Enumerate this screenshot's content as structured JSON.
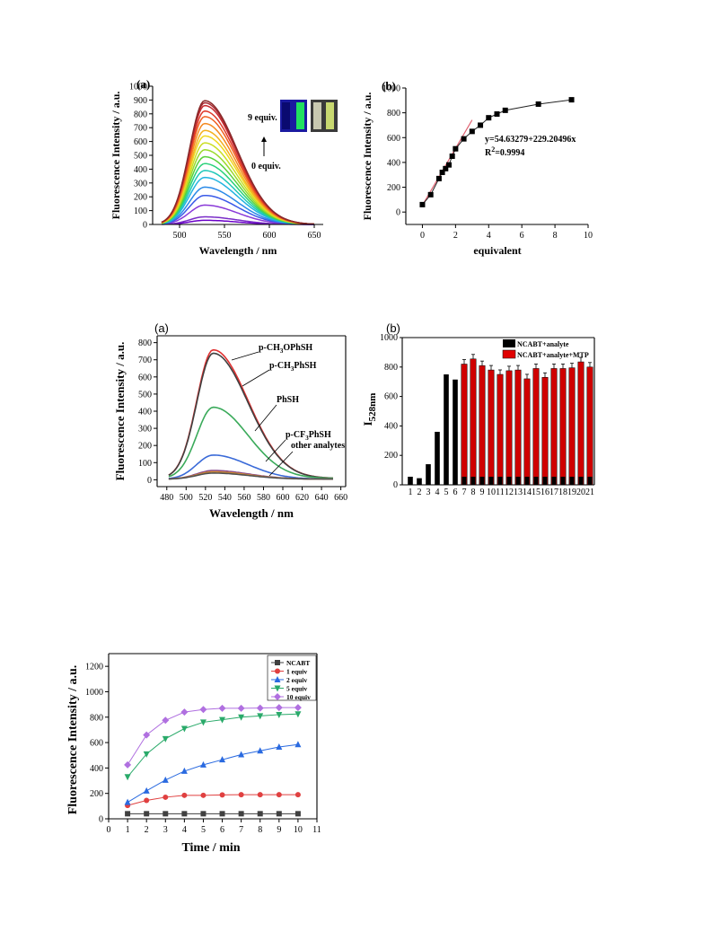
{
  "chart_data": [
    {
      "id": "fig1a",
      "type": "line",
      "panel_label": "(a)",
      "xlabel": "Wavelength / nm",
      "ylabel": "Fluorescence Intensity / a.u.",
      "xlim": [
        470,
        660
      ],
      "ylim": [
        0,
        1000
      ],
      "xticks": [
        500,
        550,
        600,
        650
      ],
      "yticks": [
        0,
        100,
        200,
        300,
        400,
        500,
        600,
        700,
        800,
        900,
        1000
      ],
      "annotations": [
        "9 equiv.",
        "0 equiv."
      ],
      "peak_x": 528,
      "curve_x_range": [
        480,
        650
      ],
      "peaks": [
        30,
        55,
        140,
        210,
        270,
        340,
        390,
        440,
        490,
        540,
        590,
        640,
        680,
        730,
        780,
        820,
        860,
        880,
        895
      ],
      "colors": [
        "#6a00c8",
        "#7a2cc8",
        "#8a3ad8",
        "#3a5ae8",
        "#2a8ae8",
        "#22b4e0",
        "#1ec8b8",
        "#2ad27a",
        "#5ad23a",
        "#9ada2a",
        "#cade22",
        "#f0d820",
        "#f4b020",
        "#f48a20",
        "#f06020",
        "#e03a2a",
        "#c82a30",
        "#a82830",
        "#8a2a2a"
      ]
    },
    {
      "id": "fig1b",
      "type": "scatter",
      "panel_label": "(b)",
      "xlabel": "equivalent",
      "ylabel": "Fluorescence Intensity / a.u.",
      "xlim": [
        -1,
        10
      ],
      "ylim": [
        -100,
        1000
      ],
      "xticks": [
        0,
        2,
        4,
        6,
        8,
        10
      ],
      "yticks": [
        0,
        200,
        400,
        600,
        800,
        1000
      ],
      "x": [
        0,
        0.5,
        1,
        1.2,
        1.4,
        1.6,
        1.8,
        2,
        2.5,
        3,
        3.5,
        4,
        4.5,
        5,
        7,
        9
      ],
      "y": [
        60,
        140,
        270,
        320,
        350,
        380,
        450,
        510,
        590,
        650,
        700,
        760,
        790,
        820,
        870,
        905
      ],
      "fit_equation": "y=54.63279+229.20496x",
      "r2_prefix": "R",
      "r2_sup": "2",
      "r2_suffix": "=0.9994",
      "fit_x": [
        0,
        3
      ]
    },
    {
      "id": "fig2a",
      "type": "line",
      "panel_label": "(a)",
      "xlabel": "Wavelength / nm",
      "ylabel": "Fluorescence Intensity / a.u.",
      "xlim": [
        470,
        665
      ],
      "ylim": [
        -40,
        840
      ],
      "xticks": [
        480,
        500,
        520,
        540,
        560,
        580,
        600,
        620,
        640,
        660
      ],
      "yticks": [
        0,
        100,
        200,
        300,
        400,
        500,
        600,
        700,
        800
      ],
      "series": [
        {
          "name": "p-CH3OPhSH",
          "label_parts": [
            "p-CH",
            "3",
            "OPhSH"
          ],
          "peak": 750,
          "color": "#e03030"
        },
        {
          "name": "p-CH3PhSH",
          "label_parts": [
            "p-CH",
            "3",
            "PhSH"
          ],
          "peak": 730,
          "color": "#404040"
        },
        {
          "name": "PhSH",
          "label_parts": [
            "PhSH",
            "",
            ""
          ],
          "peak": 415,
          "color": "#3aaa5a"
        },
        {
          "name": "p-CF3PhSH",
          "label_parts": [
            "p-CF",
            "3",
            "PhSH"
          ],
          "peak": 140,
          "color": "#3a6ad8"
        },
        {
          "name": "other analytes",
          "label_parts": [
            "other analytes",
            "",
            ""
          ],
          "peak": 50,
          "color": "#8a4a8a"
        },
        {
          "name": "",
          "peak": 42,
          "color": "#d08a30"
        },
        {
          "name": "",
          "peak": 35,
          "color": "#505050"
        }
      ],
      "peak_x": 528,
      "curve_x_range": [
        482,
        652
      ]
    },
    {
      "id": "fig2b",
      "type": "bar",
      "panel_label": "(b)",
      "ylabel_main": "I",
      "ylabel_sub": "528nm",
      "categories": [
        "1",
        "2",
        "3",
        "4",
        "5",
        "6",
        "7",
        "8",
        "9",
        "10",
        "11",
        "12",
        "13",
        "14",
        "15",
        "16",
        "17",
        "18",
        "19",
        "20",
        "21"
      ],
      "ylim": [
        0,
        1000
      ],
      "yticks": [
        0,
        200,
        400,
        600,
        800,
        1000
      ],
      "series": [
        {
          "name": "NCABT+analyte",
          "color": "#000000",
          "values": [
            55,
            45,
            140,
            360,
            750,
            715,
            55,
            55,
            55,
            55,
            55,
            55,
            55,
            55,
            55,
            55,
            55,
            55,
            55,
            55,
            55
          ]
        },
        {
          "name": "NCABT+analyte+MTP",
          "color": "#e00000",
          "values": [
            null,
            null,
            null,
            null,
            null,
            null,
            820,
            855,
            810,
            780,
            750,
            775,
            780,
            720,
            790,
            730,
            790,
            790,
            795,
            835,
            800
          ]
        }
      ],
      "legend_position": "top-right"
    },
    {
      "id": "fig3",
      "type": "line",
      "xlabel": "Time / min",
      "ylabel": "Fluorescence Intensity / a.u.",
      "xlim": [
        0,
        11
      ],
      "ylim": [
        0,
        1300
      ],
      "xticks": [
        0,
        1,
        2,
        3,
        4,
        5,
        6,
        7,
        8,
        9,
        10,
        11
      ],
      "yticks": [
        0,
        200,
        400,
        600,
        800,
        1000,
        1200
      ],
      "x": [
        1,
        2,
        3,
        4,
        5,
        6,
        7,
        8,
        9,
        10
      ],
      "series": [
        {
          "name": "NCABT",
          "marker": "square",
          "color": "#404040",
          "values": [
            40,
            40,
            40,
            40,
            40,
            40,
            40,
            40,
            40,
            40
          ]
        },
        {
          "name": "1 equiv",
          "marker": "circle",
          "color": "#e04040",
          "values": [
            105,
            145,
            170,
            185,
            185,
            188,
            190,
            190,
            190,
            190
          ]
        },
        {
          "name": "2 equiv",
          "marker": "triangle",
          "color": "#2a6ae0",
          "values": [
            130,
            220,
            305,
            375,
            425,
            465,
            505,
            535,
            565,
            585
          ]
        },
        {
          "name": "5 equiv",
          "marker": "triangle-down",
          "color": "#2aaa6a",
          "values": [
            330,
            510,
            630,
            710,
            760,
            780,
            800,
            810,
            820,
            825
          ]
        },
        {
          "name": "10 equiv",
          "marker": "diamond",
          "color": "#b070e0",
          "values": [
            425,
            660,
            775,
            840,
            860,
            870,
            870,
            872,
            875,
            875
          ]
        }
      ],
      "legend_position": "top-right"
    }
  ]
}
